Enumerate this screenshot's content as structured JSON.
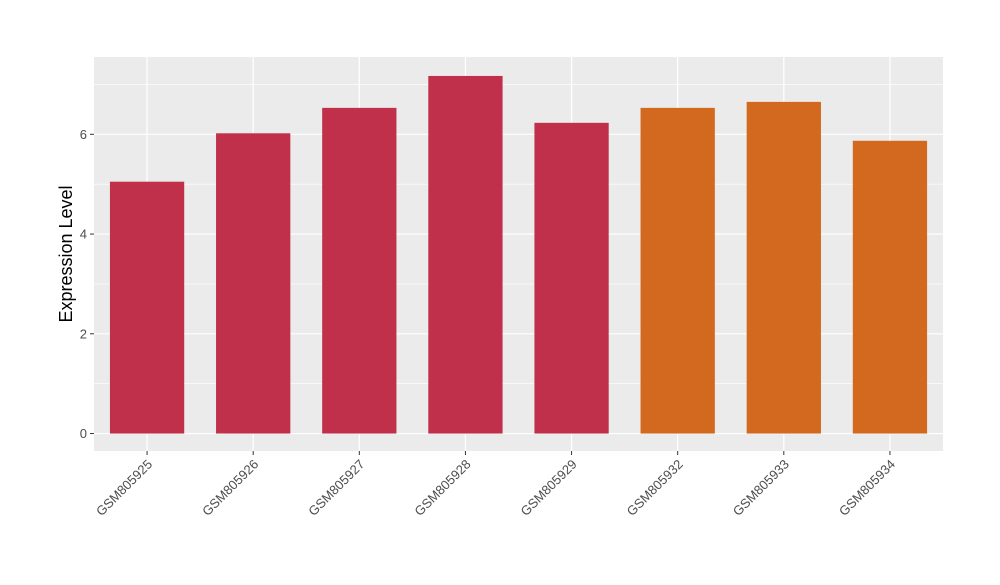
{
  "chart_data": {
    "type": "bar",
    "title": "",
    "xlabel": "",
    "ylabel": "Expression Level",
    "ylim": [
      -0.35,
      7.55
    ],
    "yticks": [
      0,
      2,
      4,
      6
    ],
    "grid": true,
    "categories": [
      "GSM805925",
      "GSM805926",
      "GSM805927",
      "GSM805928",
      "GSM805929",
      "GSM805932",
      "GSM805933",
      "GSM805934"
    ],
    "values": [
      5.05,
      6.02,
      6.53,
      7.17,
      6.23,
      6.53,
      6.65,
      5.87
    ],
    "bar_colors": [
      "#c0304a",
      "#c0304a",
      "#c0304a",
      "#c0304a",
      "#c0304a",
      "#d2691e",
      "#d2691e",
      "#d2691e"
    ],
    "panel_background": "#ebebeb",
    "grid_color": "#ffffff"
  }
}
